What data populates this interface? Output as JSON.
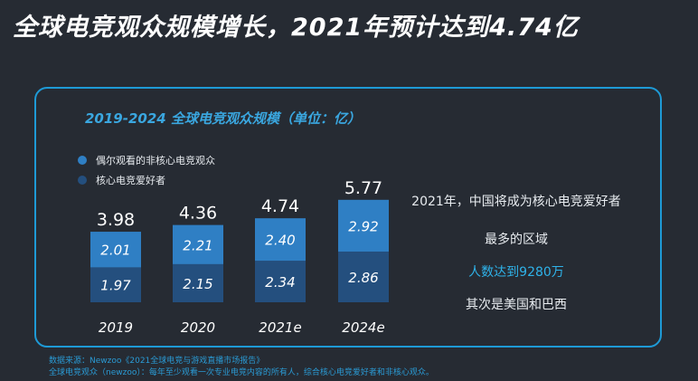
{
  "headline": "全球电竞观众规模增长，2021年预计达到4.74亿",
  "colors": {
    "casual": "#2f7fc4",
    "core": "#244f7e",
    "border": "#1e9ad6",
    "title": "#3aa7e0",
    "highlight": "#2fb3ea"
  },
  "chart_data": {
    "type": "bar",
    "stacked": true,
    "title": "2019-2024 全球电竞观众规模（单位：亿）",
    "categories": [
      "2019",
      "2020",
      "2021e",
      "2024e"
    ],
    "totals": [
      "3.98",
      "4.36",
      "4.74",
      "5.77"
    ],
    "series": [
      {
        "name": "核心电竞爱好者",
        "values": [
          1.97,
          2.15,
          2.34,
          2.86
        ],
        "labels": [
          "1.97",
          "2.15",
          "2.34",
          "2.86"
        ],
        "color": "#244f7e"
      },
      {
        "name": "偶尔观看的非核心电竞观众",
        "values": [
          2.01,
          2.21,
          2.4,
          2.92
        ],
        "labels": [
          "2.01",
          "2.21",
          "2.40",
          "2.92"
        ],
        "color": "#2f7fc4"
      }
    ],
    "legend": [
      {
        "label": "偶尔观看的非核心电竞观众",
        "color": "#2f7fc4"
      },
      {
        "label": "核心电竞爱好者",
        "color": "#244f7e"
      }
    ],
    "legend_position": "top-left",
    "ylim": [
      0,
      5.77
    ],
    "grid": false
  },
  "side": {
    "line1": "2021年，中国将成为核心电竞爱好者",
    "line2": "最多的区域",
    "line3": "人数达到9280万",
    "line4": "其次是美国和巴西"
  },
  "footnotes": {
    "source": "数据来源：Newzoo《2021全球电竞与游戏直播市场报告》",
    "definition": "全球电竞观众（newzoo）：每年至少观看一次专业电竞内容的所有人，综合核心电竞爱好者和非核心观众。"
  }
}
